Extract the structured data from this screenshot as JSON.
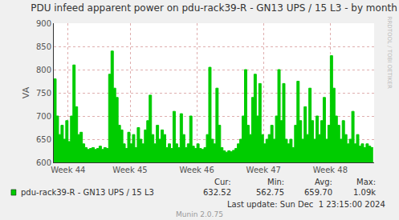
{
  "chart_data": {
    "type": "area",
    "title": "PDU infeed apparent power on pdu-rack39-R - GN13 UPS / 15 L3 - by month",
    "y_label": "VA",
    "xlim": [
      0,
      33.6
    ],
    "xticks": [
      {
        "value": 1.5,
        "label": "Week 44"
      },
      {
        "value": 8.0,
        "label": "Week 45"
      },
      {
        "value": 15.0,
        "label": "Week 46"
      },
      {
        "value": 22.0,
        "label": "Week 47"
      },
      {
        "value": 29.0,
        "label": "Week 48"
      }
    ],
    "ylim": [
      600,
      900
    ],
    "yticks": [
      600,
      650,
      700,
      750,
      800,
      850,
      900
    ],
    "grid": true,
    "x": [
      0,
      0.25,
      0.5,
      0.75,
      1,
      1.25,
      1.5,
      1.75,
      2,
      2.25,
      2.5,
      2.75,
      3,
      3.25,
      3.5,
      3.75,
      4,
      4.25,
      4.5,
      4.75,
      5,
      5.25,
      5.5,
      5.75,
      6,
      6.25,
      6.5,
      6.75,
      7,
      7.25,
      7.5,
      7.75,
      8,
      8.25,
      8.5,
      8.75,
      9,
      9.25,
      9.5,
      9.75,
      10,
      10.25,
      10.5,
      10.75,
      11,
      11.25,
      11.5,
      11.75,
      12,
      12.25,
      12.5,
      12.75,
      13,
      13.25,
      13.5,
      13.75,
      14,
      14.25,
      14.5,
      14.75,
      15,
      15.25,
      15.5,
      15.75,
      16,
      16.25,
      16.5,
      16.75,
      17,
      17.25,
      17.5,
      17.75,
      18,
      18.25,
      18.5,
      18.75,
      19,
      19.25,
      19.5,
      19.75,
      20,
      20.25,
      20.5,
      20.75,
      21,
      21.25,
      21.5,
      21.75,
      22,
      22.25,
      22.5,
      22.75,
      23,
      23.25,
      23.5,
      23.75,
      24,
      24.25,
      24.5,
      24.75,
      25,
      25.25,
      25.5,
      25.75,
      26,
      26.25,
      26.5,
      26.75,
      27,
      27.25,
      27.5,
      27.75,
      28,
      28.25,
      28.5,
      28.75,
      29,
      29.25,
      29.5,
      29.75,
      30,
      30.25,
      30.5,
      30.75,
      31,
      31.25,
      31.5,
      31.75,
      32,
      32.25,
      32.5,
      32.75,
      33,
      33.25,
      33.5
    ],
    "series": [
      {
        "name": "pdu-rack39-R - GN13 UPS / 15 L3",
        "color": "#00cc00",
        "values": [
          780,
          700,
          660,
          680,
          650,
          690,
          645,
          700,
          810,
          720,
          660,
          665,
          640,
          632,
          628,
          630,
          632,
          628,
          630,
          635,
          628,
          632,
          630,
          790,
          840,
          760,
          740,
          680,
          670,
          640,
          630,
          665,
          640,
          660,
          632,
          675,
          650,
          640,
          670,
          690,
          745,
          660,
          640,
          680,
          650,
          670,
          660,
          632,
          640,
          630,
          710,
          640,
          632,
          705,
          660,
          632,
          640,
          700,
          635,
          630,
          640,
          630,
          628,
          632,
          660,
          805,
          650,
          640,
          760,
          680,
          632,
          625,
          622,
          625,
          623,
          626,
          630,
          640,
          650,
          700,
          800,
          680,
          660,
          740,
          790,
          700,
          770,
          660,
          640,
          650,
          660,
          680,
          650,
          700,
          800,
          690,
          770,
          650,
          640,
          650,
          632,
          680,
          775,
          690,
          650,
          720,
          660,
          760,
          690,
          650,
          700,
          660,
          690,
          740,
          650,
          680,
          830,
          760,
          700,
          680,
          650,
          690,
          660,
          640,
          650,
          710,
          640,
          660,
          635,
          640,
          632,
          640,
          635,
          632,
          632
        ],
        "stats": [
          {
            "label": "Cur:",
            "value": 632.52,
            "value_label": "632.52"
          },
          {
            "label": "Min:",
            "value": 562.75,
            "value_label": "562.75"
          },
          {
            "label": "Avg:",
            "value": 659.7,
            "value_label": "659.70"
          },
          {
            "label": "Max:",
            "value": 1090,
            "value_label": "1.09k"
          }
        ]
      }
    ],
    "last_update": "Last update: Sun Dec  1 23:15:00 2024",
    "footer": "Munin 2.0.75",
    "watermark": "RRDTOOL / TOBI OETIKER"
  }
}
